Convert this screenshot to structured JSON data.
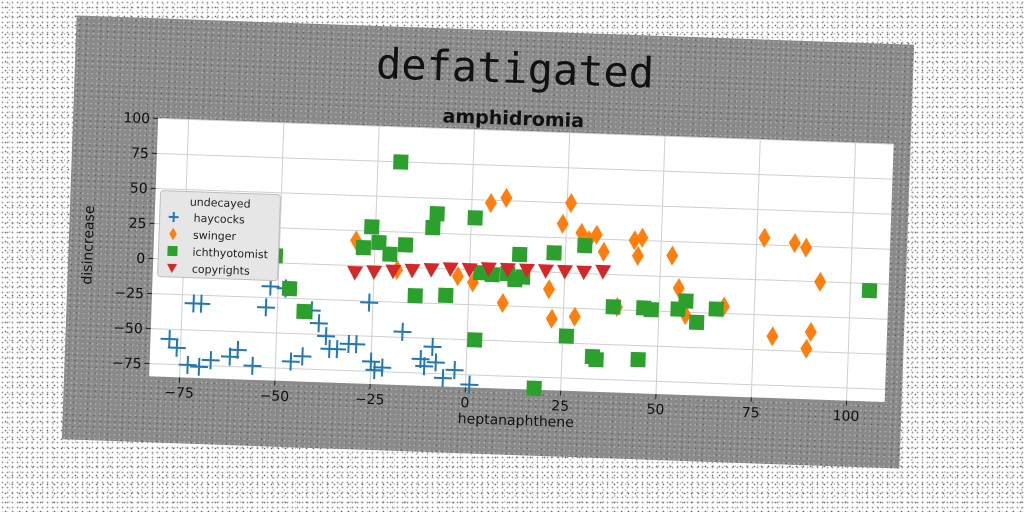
{
  "chart_data": {
    "type": "scatter",
    "title": "defatigated",
    "subtitle": "amphidromia",
    "xlabel": "heptanaphthene",
    "ylabel": "disincrease",
    "xlim": [
      -83,
      110
    ],
    "ylim": [
      -84,
      100
    ],
    "xticks": [
      -75,
      -50,
      -25,
      0,
      25,
      50,
      75,
      100
    ],
    "yticks": [
      -75,
      -50,
      -25,
      0,
      25,
      50,
      75,
      100
    ],
    "xtick_labels": [
      "−75",
      "−50",
      "−25",
      "0",
      "25",
      "50",
      "75",
      "100"
    ],
    "ytick_labels": [
      "−75",
      "−50",
      "−25",
      "0",
      "25",
      "50",
      "75",
      "100"
    ],
    "grid": true,
    "legend": {
      "title": "undecayed",
      "position": "center-left"
    },
    "series": [
      {
        "name": "haycocks",
        "marker": "plus",
        "color": "#1f77b4",
        "points": [
          [
            -78,
            -57
          ],
          [
            -76,
            -63
          ],
          [
            -73,
            -75
          ],
          [
            -72,
            -31
          ],
          [
            -70,
            -31
          ],
          [
            -70,
            -76
          ],
          [
            -67,
            -71
          ],
          [
            -62,
            -68
          ],
          [
            -60,
            -63
          ],
          [
            -56,
            -74
          ],
          [
            -53,
            -32
          ],
          [
            -52,
            -17
          ],
          [
            -48,
            -18
          ],
          [
            -46,
            -70
          ],
          [
            -43,
            -66
          ],
          [
            -41,
            -33
          ],
          [
            -39,
            -42
          ],
          [
            -37,
            -51
          ],
          [
            -36,
            -60
          ],
          [
            -34,
            -60
          ],
          [
            -31,
            -56
          ],
          [
            -29,
            -56
          ],
          [
            -26,
            -26
          ],
          [
            -25,
            -68
          ],
          [
            -24,
            -74
          ],
          [
            -22,
            -72
          ],
          [
            -17,
            -46
          ],
          [
            -12,
            -65
          ],
          [
            -11,
            -70
          ],
          [
            -9,
            -56
          ],
          [
            -8,
            -67
          ],
          [
            -6,
            -78
          ],
          [
            -3,
            -72
          ],
          [
            1,
            -82
          ]
        ]
      },
      {
        "name": "swinger",
        "marker": "diamond",
        "color": "#ff7f0e",
        "points": [
          [
            -30,
            18
          ],
          [
            -19,
            -2
          ],
          [
            -3,
            -5
          ],
          [
            1,
            -9
          ],
          [
            5,
            48
          ],
          [
            9,
            52
          ],
          [
            9,
            -23
          ],
          [
            21,
            -12
          ],
          [
            22,
            -33
          ],
          [
            24,
            35
          ],
          [
            26,
            50
          ],
          [
            28,
            -31
          ],
          [
            29,
            29
          ],
          [
            31,
            24
          ],
          [
            33,
            28
          ],
          [
            35,
            16
          ],
          [
            39,
            -23
          ],
          [
            43,
            25
          ],
          [
            44,
            14
          ],
          [
            45,
            27
          ],
          [
            53,
            15
          ],
          [
            55,
            -8
          ],
          [
            57,
            -27
          ],
          [
            67,
            -20
          ],
          [
            77,
            30
          ],
          [
            80,
            -40
          ],
          [
            85,
            27
          ],
          [
            88,
            24
          ],
          [
            89,
            -48
          ],
          [
            90,
            -36
          ],
          [
            92,
            0
          ]
        ]
      },
      {
        "name": "ichthyotomist",
        "marker": "square",
        "color": "#2ca02c",
        "points": [
          [
            -51,
            5
          ],
          [
            -47,
            -18
          ],
          [
            -43,
            -34
          ],
          [
            -28,
            13
          ],
          [
            -26,
            28
          ],
          [
            -24,
            17
          ],
          [
            -21,
            9
          ],
          [
            -19,
            75
          ],
          [
            -17,
            16
          ],
          [
            -14,
            -20
          ],
          [
            -10,
            29
          ],
          [
            -9,
            39
          ],
          [
            -6,
            -19
          ],
          [
            1,
            37
          ],
          [
            2,
            -50
          ],
          [
            3,
            -2
          ],
          [
            6,
            -3
          ],
          [
            10,
            -2
          ],
          [
            12,
            -6
          ],
          [
            13,
            12
          ],
          [
            14,
            -4
          ],
          [
            18,
            -83
          ],
          [
            22,
            14
          ],
          [
            26,
            -45
          ],
          [
            30,
            20
          ],
          [
            33,
            -59
          ],
          [
            34,
            -61
          ],
          [
            38,
            -23
          ],
          [
            45,
            -60
          ],
          [
            46,
            -23
          ],
          [
            48,
            -24
          ],
          [
            55,
            -23
          ],
          [
            57,
            -17
          ],
          [
            60,
            -32
          ],
          [
            65,
            -22
          ],
          [
            105,
            -5
          ]
        ]
      },
      {
        "name": "copyrights",
        "marker": "triangle_down",
        "color": "#d62728",
        "points": [
          [
            -30,
            -5
          ],
          [
            -25,
            -4
          ],
          [
            -20,
            -3
          ],
          [
            -15,
            -2
          ],
          [
            -10,
            -1
          ],
          [
            -5,
            0
          ],
          [
            0,
            0
          ],
          [
            5,
            1
          ],
          [
            10,
            1
          ],
          [
            15,
            1
          ],
          [
            20,
            1
          ],
          [
            25,
            1
          ],
          [
            30,
            1
          ],
          [
            35,
            2
          ]
        ]
      }
    ]
  }
}
